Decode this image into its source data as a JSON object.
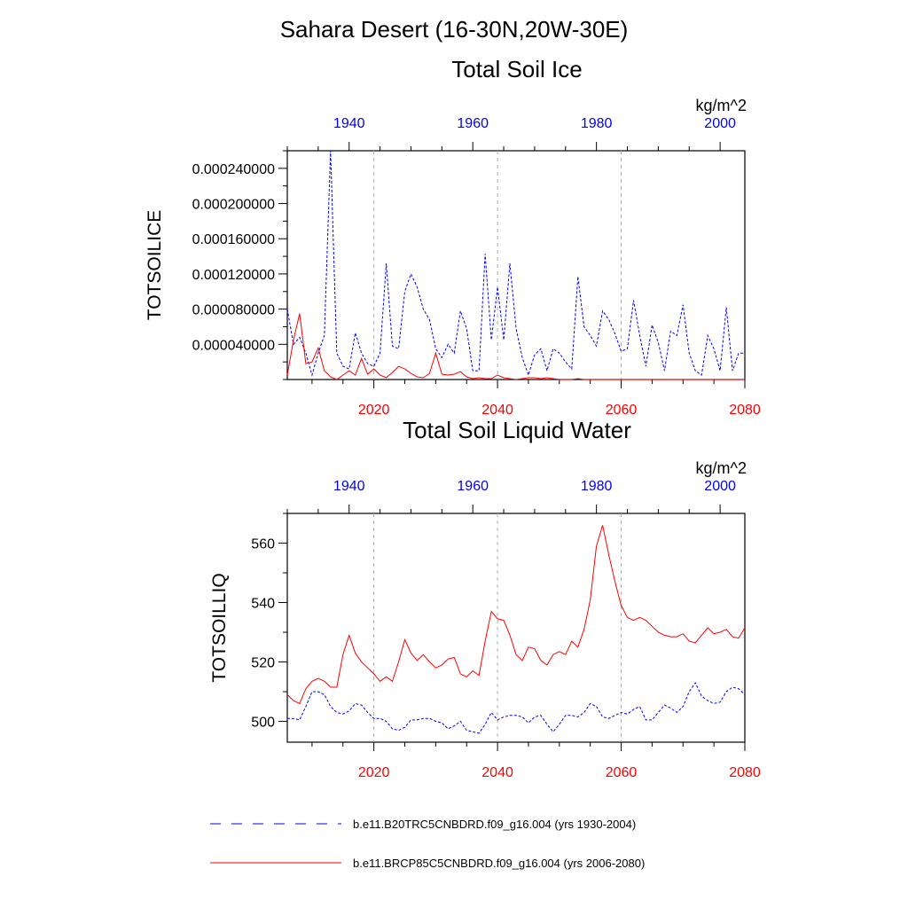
{
  "main_title": "Sahara Desert (16-30N,20W-30E)",
  "colors": {
    "historical": "#0000ff",
    "future": "#ff0000",
    "grid": "#aaaaaa"
  },
  "legend": {
    "historical_label": "b.e11.B20TRC5CNBDRD.f09_g16.004 (yrs 1930-2004)",
    "future_label": "b.e11.BRCP85C5CNBDRD.f09_g16.004 (yrs 2006-2080)"
  },
  "chart_data": [
    {
      "type": "line",
      "title": "Total Soil Ice",
      "units": "kg/m^2",
      "ylabel": "TOTSOILICE",
      "ylim": [
        0,
        0.00026
      ],
      "yticks": [
        {
          "v": 4e-05,
          "label": "0.000040000"
        },
        {
          "v": 8e-05,
          "label": "0.000080000"
        },
        {
          "v": 0.00012,
          "label": "0.000120000"
        },
        {
          "v": 0.00016,
          "label": "0.000160000"
        },
        {
          "v": 0.0002,
          "label": "0.000200000"
        },
        {
          "v": 0.00024,
          "label": "0.000240000"
        }
      ],
      "top_axis": {
        "range": [
          1930,
          2004
        ],
        "ticks": [
          1940,
          1960,
          1980,
          2000
        ]
      },
      "bottom_axis": {
        "range": [
          2006,
          2080
        ],
        "ticks": [
          2020,
          2040,
          2060,
          2080
        ]
      },
      "series": [
        {
          "name": "b.e11.B20TRC5CNBDRD.f09_g16.004 (yrs 1930-2004)",
          "axis": "top",
          "x": [
            1930,
            1931,
            1932,
            1933,
            1934,
            1935,
            1936,
            1937,
            1938,
            1939,
            1940,
            1941,
            1942,
            1943,
            1944,
            1945,
            1946,
            1947,
            1948,
            1949,
            1950,
            1951,
            1952,
            1953,
            1954,
            1955,
            1956,
            1957,
            1958,
            1959,
            1960,
            1961,
            1962,
            1963,
            1964,
            1965,
            1966,
            1967,
            1968,
            1969,
            1970,
            1971,
            1972,
            1973,
            1974,
            1975,
            1976,
            1977,
            1978,
            1979,
            1980,
            1981,
            1982,
            1983,
            1984,
            1985,
            1986,
            1987,
            1988,
            1989,
            1990,
            1991,
            1992,
            1993,
            1994,
            1995,
            1996,
            1997,
            1998,
            1999,
            2000,
            2001,
            2002,
            2003,
            2004
          ],
          "values": [
            8e-05,
            4e-05,
            4.8e-05,
            3e-05,
            5e-06,
            3e-05,
            5e-05,
            0.00026,
            3e-05,
            1.5e-05,
            1.2e-05,
            5.3e-05,
            3e-05,
            1.8e-05,
            1.5e-05,
            3e-05,
            0.000132,
            3.8e-05,
            3.5e-05,
            0.0001,
            0.00012,
            0.000105,
            8e-05,
            6.8e-05,
            3.5e-05,
            2.5e-05,
            4e-05,
            3e-05,
            7.8e-05,
            5.8e-05,
            1e-05,
            1e-05,
            0.000143,
            4.5e-05,
            0.000105,
            4.5e-05,
            0.000132,
            5.8e-05,
            2.5e-05,
            5e-06,
            2.8e-05,
            3.5e-05,
            1e-05,
            3.5e-05,
            3e-05,
            2e-05,
            1.2e-05,
            0.000117,
            6e-05,
            5e-05,
            3.8e-05,
            7.8e-05,
            6.8e-05,
            5.2e-05,
            3.2e-05,
            3.5e-05,
            9e-05,
            5e-05,
            1.5e-05,
            6.2e-05,
            4.2e-05,
            1e-05,
            5.5e-05,
            5e-05,
            8.5e-05,
            3e-05,
            1e-05,
            5e-06,
            5e-05,
            3.5e-05,
            1e-05,
            8.2e-05,
            1e-05,
            3e-05,
            3e-05
          ]
        },
        {
          "name": "b.e11.BRCP85C5CNBDRD.f09_g16.004 (yrs 2006-2080)",
          "axis": "bottom",
          "x": [
            2006,
            2007,
            2008,
            2009,
            2010,
            2011,
            2012,
            2013,
            2014,
            2015,
            2016,
            2017,
            2018,
            2019,
            2020,
            2021,
            2022,
            2023,
            2024,
            2025,
            2026,
            2027,
            2028,
            2029,
            2030,
            2031,
            2032,
            2033,
            2034,
            2035,
            2036,
            2037,
            2038,
            2039,
            2040,
            2041,
            2042,
            2043,
            2044,
            2045,
            2046,
            2047,
            2048,
            2049,
            2050,
            2051,
            2052,
            2053,
            2054,
            2055,
            2056,
            2057,
            2058,
            2059,
            2060,
            2061,
            2062,
            2063,
            2064,
            2065,
            2066,
            2067,
            2068,
            2069,
            2070,
            2071,
            2072,
            2073,
            2074,
            2075,
            2076,
            2077,
            2078,
            2079,
            2080
          ],
          "values": [
            5e-06,
            4.5e-05,
            7.5e-05,
            1.8e-05,
            2e-05,
            3.6e-05,
            1e-05,
            3e-06,
            0,
            5e-06,
            1e-05,
            5e-06,
            2.4e-05,
            6e-06,
            1.2e-05,
            5e-06,
            2e-06,
            8e-06,
            1.5e-05,
            1.2e-05,
            7e-06,
            3e-06,
            2e-06,
            7e-06,
            3e-05,
            6e-06,
            5e-06,
            6e-06,
            9e-06,
            3e-06,
            1e-06,
            2e-06,
            1e-06,
            1e-06,
            5e-06,
            2e-06,
            1e-06,
            0,
            1e-06,
            2e-06,
            2e-06,
            1e-06,
            2e-06,
            1e-06,
            0,
            0,
            0,
            1e-06,
            0,
            0,
            0,
            0,
            0,
            0,
            0,
            0,
            0,
            0,
            0,
            0,
            0,
            0,
            0,
            0,
            0,
            0,
            0,
            0,
            0,
            0,
            0,
            0,
            0,
            0,
            0
          ]
        }
      ]
    },
    {
      "type": "line",
      "title": "Total Soil Liquid Water",
      "units": "kg/m^2",
      "ylabel": "TOTSOILLIQ",
      "ylim": [
        493,
        570
      ],
      "yticks": [
        {
          "v": 500,
          "label": "500"
        },
        {
          "v": 520,
          "label": "520"
        },
        {
          "v": 540,
          "label": "540"
        },
        {
          "v": 560,
          "label": "560"
        }
      ],
      "top_axis": {
        "range": [
          1930,
          2004
        ],
        "ticks": [
          1940,
          1960,
          1980,
          2000
        ]
      },
      "bottom_axis": {
        "range": [
          2006,
          2080
        ],
        "ticks": [
          2020,
          2040,
          2060,
          2080
        ]
      },
      "series": [
        {
          "name": "b.e11.B20TRC5CNBDRD.f09_g16.004 (yrs 1930-2004)",
          "axis": "top",
          "x": [
            1930,
            1931,
            1932,
            1933,
            1934,
            1935,
            1936,
            1937,
            1938,
            1939,
            1940,
            1941,
            1942,
            1943,
            1944,
            1945,
            1946,
            1947,
            1948,
            1949,
            1950,
            1951,
            1952,
            1953,
            1954,
            1955,
            1956,
            1957,
            1958,
            1959,
            1960,
            1961,
            1962,
            1963,
            1964,
            1965,
            1966,
            1967,
            1968,
            1969,
            1970,
            1971,
            1972,
            1973,
            1974,
            1975,
            1976,
            1977,
            1978,
            1979,
            1980,
            1981,
            1982,
            1983,
            1984,
            1985,
            1986,
            1987,
            1988,
            1989,
            1990,
            1991,
            1992,
            1993,
            1994,
            1995,
            1996,
            1997,
            1998,
            1999,
            2000,
            2001,
            2002,
            2003,
            2004
          ],
          "values": [
            501,
            501,
            500.5,
            505,
            510,
            510,
            509,
            505,
            503,
            502.5,
            503.5,
            506,
            505.5,
            503,
            501,
            501,
            500,
            497.5,
            497,
            498,
            500.5,
            500.5,
            501,
            501,
            500,
            499.5,
            497.5,
            498.5,
            500,
            497,
            496.5,
            496,
            499,
            503,
            500.5,
            501.5,
            502,
            502,
            501.5,
            499.5,
            501.5,
            502,
            499,
            496.5,
            499,
            502,
            502,
            501.5,
            503,
            506,
            505,
            501.5,
            501,
            502,
            503,
            502.5,
            504,
            505,
            500.5,
            500.5,
            503,
            505.5,
            504.5,
            503,
            505,
            510,
            513,
            508.5,
            507,
            506,
            506.5,
            510,
            511.5,
            511,
            509
          ]
        },
        {
          "name": "b.e11.BRCP85C5CNBDRD.f09_g16.004 (yrs 2006-2080)",
          "axis": "bottom",
          "x": [
            2006,
            2007,
            2008,
            2009,
            2010,
            2011,
            2012,
            2013,
            2014,
            2015,
            2016,
            2017,
            2018,
            2019,
            2020,
            2021,
            2022,
            2023,
            2024,
            2025,
            2026,
            2027,
            2028,
            2029,
            2030,
            2031,
            2032,
            2033,
            2034,
            2035,
            2036,
            2037,
            2038,
            2039,
            2040,
            2041,
            2042,
            2043,
            2044,
            2045,
            2046,
            2047,
            2048,
            2049,
            2050,
            2051,
            2052,
            2053,
            2054,
            2055,
            2056,
            2057,
            2058,
            2059,
            2060,
            2061,
            2062,
            2063,
            2064,
            2065,
            2066,
            2067,
            2068,
            2069,
            2070,
            2071,
            2072,
            2073,
            2074,
            2075,
            2076,
            2077,
            2078,
            2079,
            2080
          ],
          "values": [
            509,
            507,
            506,
            511,
            513.5,
            514.5,
            513.5,
            511.5,
            511.5,
            522.5,
            529,
            523,
            520,
            518,
            516,
            513.5,
            515,
            513.5,
            520,
            527.5,
            523,
            520.5,
            522.5,
            520,
            518,
            519,
            521,
            521.5,
            516,
            515,
            517,
            515.5,
            527,
            537,
            534.5,
            534,
            529,
            522.5,
            520.5,
            525,
            524.5,
            520.5,
            519,
            522.5,
            523.5,
            522.5,
            527,
            525,
            531,
            541,
            559,
            566,
            556,
            547,
            539,
            535,
            534,
            535,
            534,
            532,
            530,
            529,
            528.5,
            528.5,
            529.5,
            527,
            526.5,
            529,
            531.5,
            529.5,
            530,
            531,
            528.5,
            528,
            531.5
          ]
        }
      ]
    }
  ]
}
